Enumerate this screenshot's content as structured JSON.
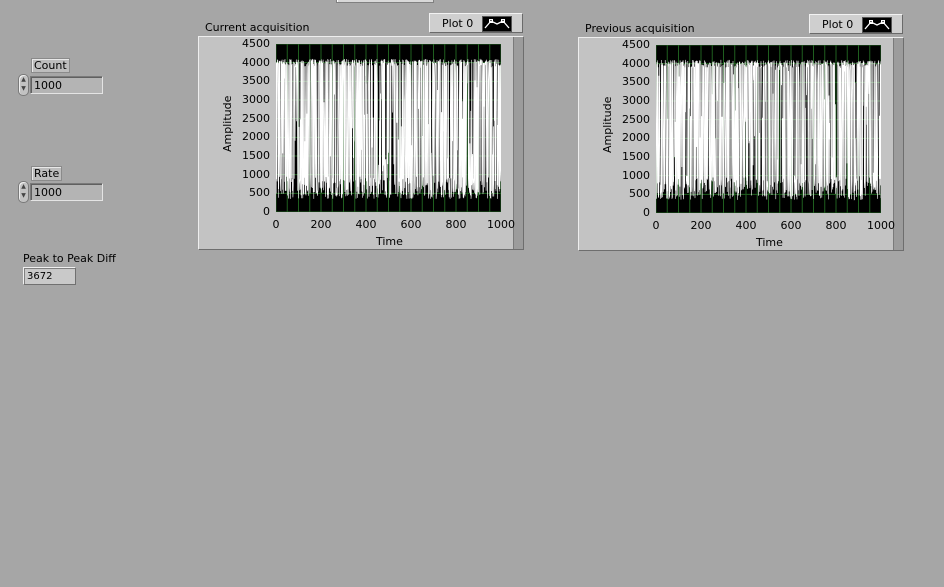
{
  "controls": {
    "count": {
      "label": "Count",
      "value": "1000"
    },
    "rate": {
      "label": "Rate",
      "value": "1000"
    },
    "peak_diff": {
      "label": "Peak to Peak Diff",
      "value": "3672"
    }
  },
  "graphs": [
    {
      "title": "Current acquisition",
      "legend": "Plot 0",
      "ylabel": "Amplitude",
      "xlabel": "Time",
      "yticks": [
        "4500",
        "4000",
        "3500",
        "3000",
        "2500",
        "2000",
        "1500",
        "1000",
        "500",
        "0"
      ],
      "xticks": [
        "0",
        "200",
        "400",
        "600",
        "800",
        "1000"
      ]
    },
    {
      "title": "Previous acquisition",
      "legend": "Plot 0",
      "ylabel": "Amplitude",
      "xlabel": "Time",
      "yticks": [
        "4500",
        "4000",
        "3500",
        "3000",
        "2500",
        "2000",
        "1500",
        "1000",
        "500",
        "0"
      ],
      "xticks": [
        "0",
        "200",
        "400",
        "600",
        "800",
        "1000"
      ]
    }
  ],
  "chart_data": [
    {
      "type": "line",
      "title": "Current acquisition",
      "xlabel": "Time",
      "ylabel": "Amplitude",
      "xlim": [
        0,
        1000
      ],
      "ylim": [
        0,
        4500
      ],
      "series": [
        {
          "name": "Plot 0",
          "y_range": [
            350,
            4100
          ],
          "peak_to_peak": 3672,
          "points": 1000
        }
      ],
      "grid": true,
      "colors": {
        "background": "#000000",
        "trace": "#ffffff",
        "grid": "#1f5f1f"
      }
    },
    {
      "type": "line",
      "title": "Previous acquisition",
      "xlabel": "Time",
      "ylabel": "Amplitude",
      "xlim": [
        0,
        1000
      ],
      "ylim": [
        0,
        4500
      ],
      "series": [
        {
          "name": "Plot 0",
          "y_range": [
            350,
            4100
          ],
          "points": 1000
        }
      ],
      "grid": true,
      "colors": {
        "background": "#000000",
        "trace": "#ffffff",
        "grid": "#1f5f1f"
      }
    }
  ]
}
